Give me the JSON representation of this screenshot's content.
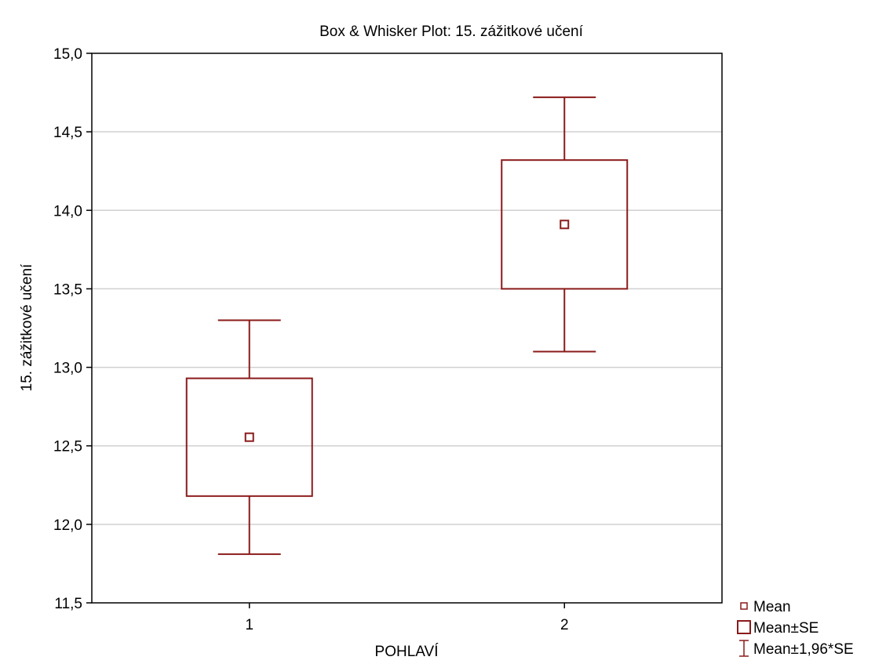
{
  "chart_data": {
    "type": "boxplot",
    "title": "Box & Whisker Plot: 15. zážitkové učení",
    "xlabel": "POHLAVÍ",
    "ylabel": "15. zážitkové učení",
    "categories": [
      "1",
      "2"
    ],
    "ylim": [
      11.5,
      15.0
    ],
    "yticks": [
      11.5,
      12.0,
      12.5,
      13.0,
      13.5,
      14.0,
      14.5,
      15.0
    ],
    "ytick_labels": [
      "11,5",
      "12,0",
      "12,5",
      "13,0",
      "13,5",
      "14,0",
      "14,5",
      "15,0"
    ],
    "grid": "horizontal",
    "legend_position": "bottom-right",
    "legend": [
      {
        "symbol": "mean-marker",
        "label": "Mean"
      },
      {
        "symbol": "box",
        "label": "Mean±SE"
      },
      {
        "symbol": "whisker",
        "label": "Mean±1,96*SE"
      }
    ],
    "series": [
      {
        "category": "1",
        "mean": 12.555,
        "se_low": 12.18,
        "se_high": 12.93,
        "ci_low": 11.81,
        "ci_high": 13.3
      },
      {
        "category": "2",
        "mean": 13.91,
        "se_low": 13.5,
        "se_high": 14.32,
        "ci_low": 13.1,
        "ci_high": 14.72
      }
    ],
    "colors": {
      "series": "#8b1a1a",
      "grid": "#d0d0d0",
      "axis": "#000000"
    }
  }
}
